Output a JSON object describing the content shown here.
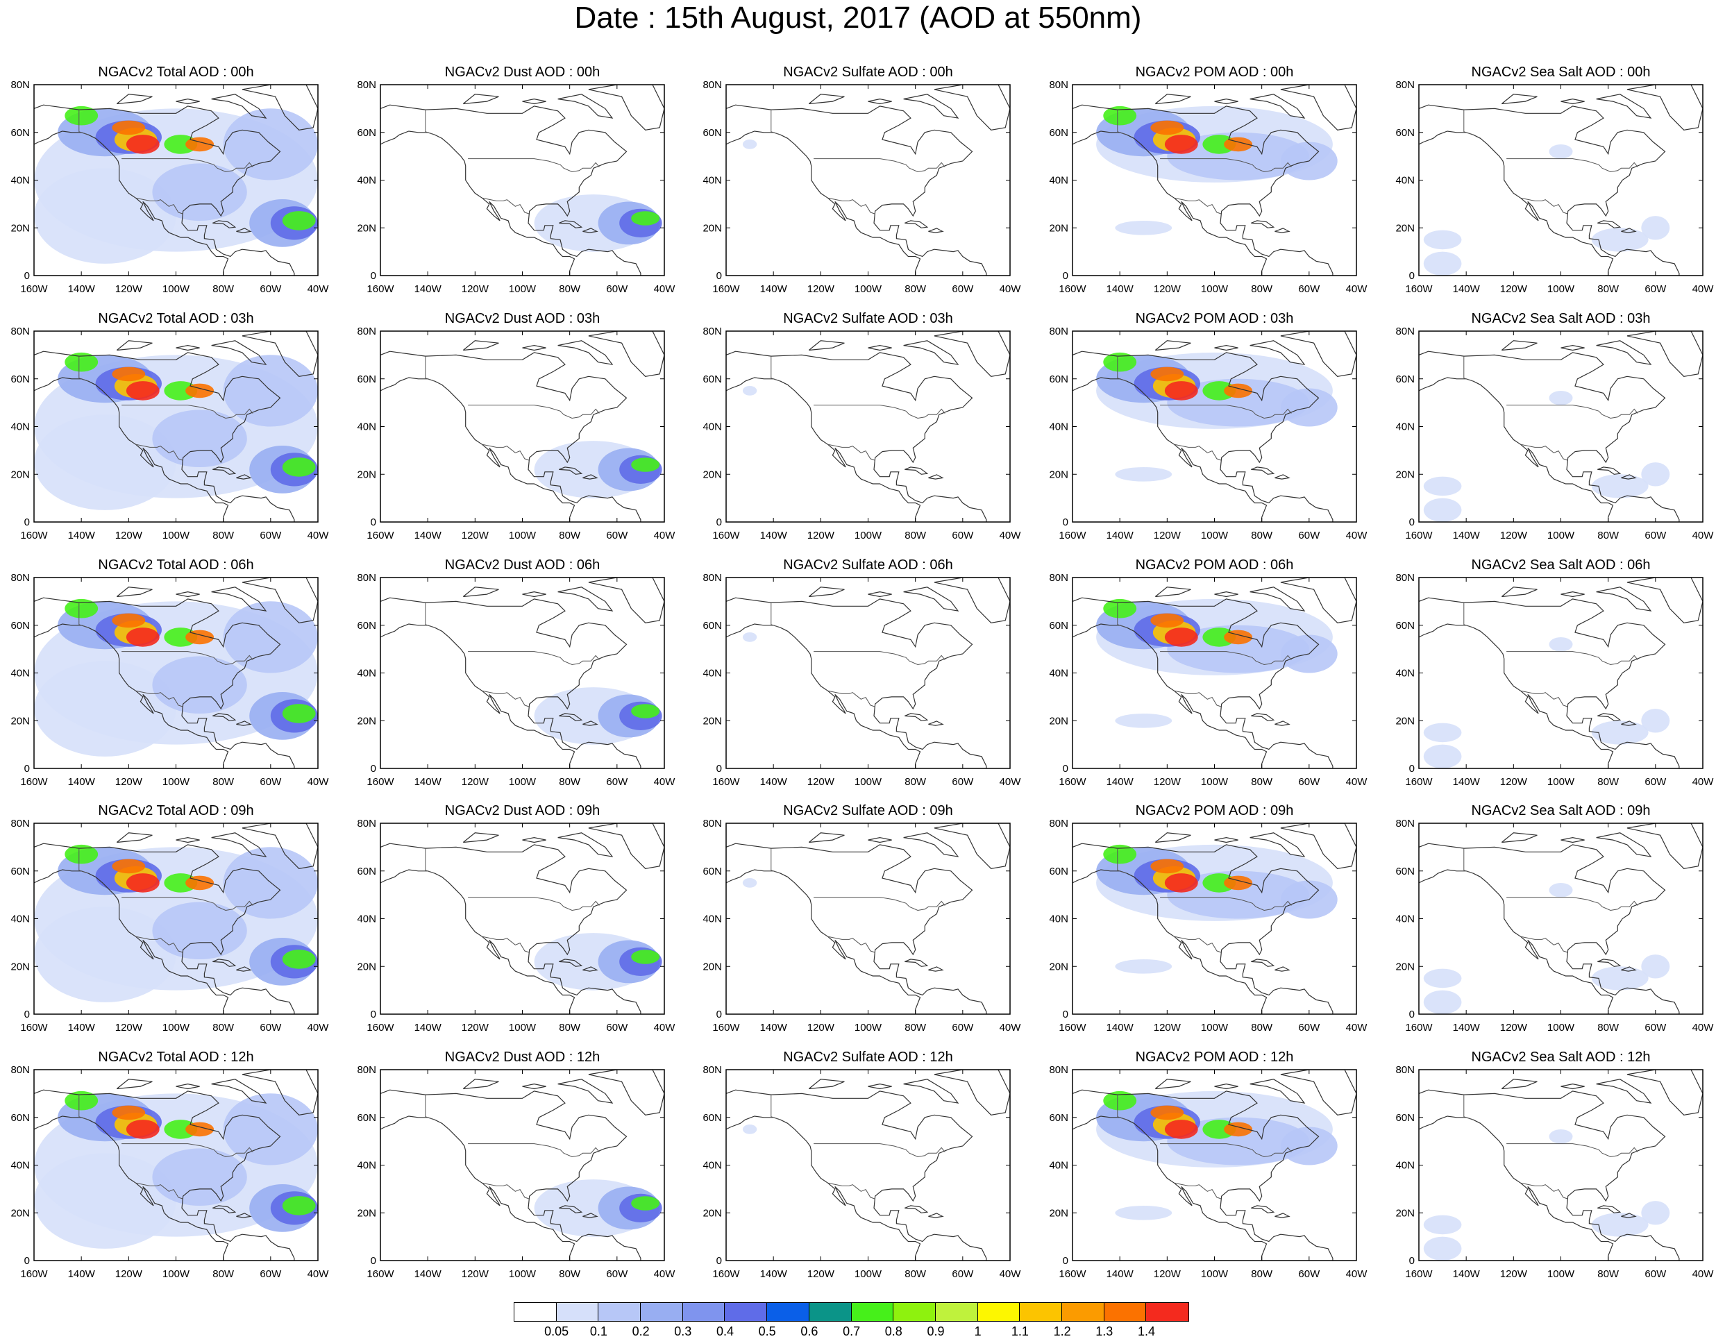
{
  "title": "Date : 15th August, 2017 (AOD at 550nm)",
  "axes": {
    "lat_ticks": [
      "80N",
      "60N",
      "40N",
      "20N",
      "0"
    ],
    "lon_ticks": [
      "160W",
      "140W",
      "120W",
      "100W",
      "80W",
      "60W",
      "40W"
    ],
    "lat_range": [
      0,
      80
    ],
    "lon_range": [
      -160,
      -40
    ]
  },
  "rows": [
    {
      "panels": [
        "NGACv2 Total AOD : 00h",
        "NGACv2 Dust AOD : 00h",
        "NGACv2 Sulfate AOD : 00h",
        "NGACv2 POM AOD : 00h",
        "NGACv2 Sea Salt AOD : 00h"
      ]
    },
    {
      "panels": [
        "NGACv2 Total AOD : 03h",
        "NGACv2 Dust AOD : 03h",
        "NGACv2 Sulfate AOD : 03h",
        "NGACv2 POM AOD : 03h",
        "NGACv2 Sea Salt AOD : 03h"
      ]
    },
    {
      "panels": [
        "NGACv2 Total AOD : 06h",
        "NGACv2 Dust AOD : 06h",
        "NGACv2 Sulfate AOD : 06h",
        "NGACv2 POM AOD : 06h",
        "NGACv2 Sea Salt AOD : 06h"
      ]
    },
    {
      "panels": [
        "NGACv2 Total AOD : 09h",
        "NGACv2 Dust AOD : 09h",
        "NGACv2 Sulfate AOD : 09h",
        "NGACv2 POM AOD : 09h",
        "NGACv2 Sea Salt  AOD : 09h"
      ]
    },
    {
      "panels": [
        "NGACv2 Total AOD  : 12h",
        "NGACv2 Dust AOD : 12h",
        "NGACv2 Sulfate AOD : 12h",
        "NGACv2 POM  AOD : 12h",
        "NGACv2 Sea Salt  AOD : 12h"
      ]
    }
  ],
  "legend": {
    "labels": [
      "0.05",
      "0.1",
      "0.2",
      "0.3",
      "0.4",
      "0.5",
      "0.6",
      "0.7",
      "0.8",
      "0.9",
      "1",
      "1.1",
      "1.2",
      "1.3",
      "1.4"
    ],
    "colors": [
      "#ffffff",
      "#d6e0fa",
      "#b7c7f7",
      "#98aef2",
      "#7f94ee",
      "#5f6ce8",
      "#0a5fe8",
      "#0b9488",
      "#46f01a",
      "#8ef20e",
      "#bff23c",
      "#fdf700",
      "#fcc400",
      "#fb9b00",
      "#fb7200",
      "#f42a1e"
    ]
  }
}
